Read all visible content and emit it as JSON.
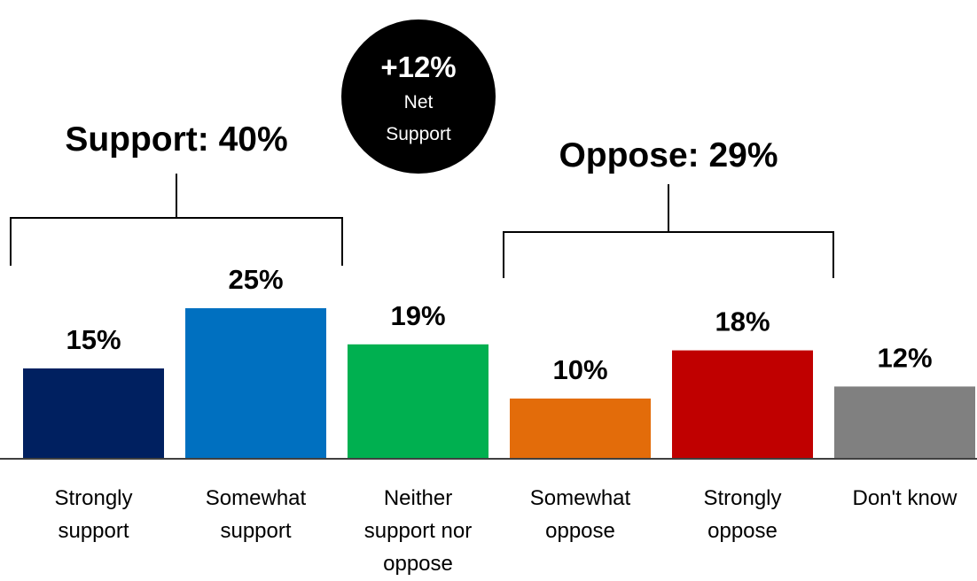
{
  "chart_data": {
    "type": "bar",
    "categories": [
      [
        "Strongly",
        "support"
      ],
      [
        "Somewhat",
        "support"
      ],
      [
        "Neither",
        "support nor",
        "oppose"
      ],
      [
        "Somewhat",
        "oppose"
      ],
      [
        "Strongly",
        "oppose"
      ],
      [
        "Don't know"
      ]
    ],
    "values": [
      15,
      25,
      19,
      10,
      18,
      12
    ],
    "value_labels": [
      "15%",
      "25%",
      "19%",
      "10%",
      "18%",
      "12%"
    ],
    "colors": [
      "#002060",
      "#0070C0",
      "#00B050",
      "#E36C0A",
      "#C00000",
      "#808080"
    ],
    "grid": false,
    "groups": [
      {
        "label": "Support: 40%",
        "value": 40,
        "covers": [
          0,
          1
        ]
      },
      {
        "label": "Oppose: 29%",
        "value": 29,
        "covers": [
          3,
          4
        ]
      }
    ],
    "badge": {
      "value": "+12%",
      "line1": "Net",
      "line2": "Support",
      "color": "#000000"
    }
  }
}
